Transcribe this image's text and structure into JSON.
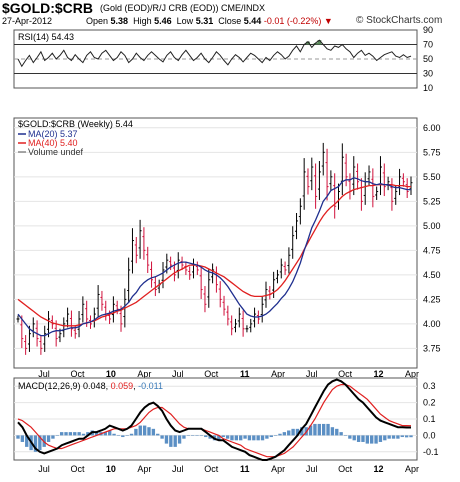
{
  "header": {
    "symbol": "$GOLD:$CRB",
    "description": "(Gold (EOD)/R/J CRB (EOD))  CME/INDX",
    "site": "© StockCharts.com",
    "date": "27-Apr-2012",
    "open_label": "Open",
    "open": "5.38",
    "high_label": "High",
    "high": "5.46",
    "low_label": "Low",
    "low": "5.31",
    "close_label": "Close",
    "close": "5.44",
    "change": "-0.01 (-0.22%)"
  },
  "rsi_panel": {
    "label": "RSI(14) 54.43",
    "ticks": [
      "90",
      "70",
      "50",
      "30",
      "10"
    ]
  },
  "price_panel": {
    "title": "$GOLD:$CRB (Weekly) 5.44",
    "legend": [
      {
        "text": "MA(20) 5.37",
        "color": "#1f2f8f"
      },
      {
        "text": "MA(40) 5.40",
        "color": "#e02020"
      },
      {
        "text": "Volume undef",
        "color": "#888888"
      }
    ],
    "ticks": [
      "6.00",
      "5.75",
      "5.50",
      "5.25",
      "5.00",
      "4.75",
      "4.50",
      "4.25",
      "4.00",
      "3.75"
    ]
  },
  "macd_panel": {
    "label_prefix": "MACD(12,26,9)",
    "v1": "0.048",
    "v2": "0.059",
    "v3": "-0.011",
    "ticks": [
      "0.3",
      "0.2",
      "0.1",
      "0.0",
      "-0.1"
    ]
  },
  "x_axis": {
    "labels": [
      "Jul",
      "Oct",
      "10",
      "Apr",
      "Jul",
      "Oct",
      "11",
      "Apr",
      "Jul",
      "Oct",
      "12",
      "Apr"
    ],
    "bold": [
      false,
      false,
      true,
      false,
      false,
      false,
      true,
      false,
      false,
      false,
      true,
      false
    ]
  },
  "colors": {
    "ma20": "#1f2f8f",
    "ma40": "#e02020",
    "bar_up": "#000000",
    "bar_down": "#d0103a",
    "macd_hist": "#5b8fc4",
    "rsi_fill": "#5a8a5a"
  },
  "chart_data": [
    {
      "type": "line",
      "title": "RSI(14) 54.43",
      "ylim": [
        10,
        90
      ],
      "y_ticks": [
        90,
        70,
        50,
        30,
        10
      ],
      "series": [
        {
          "name": "RSI(14)",
          "values": [
            50,
            40,
            48,
            55,
            45,
            52,
            60,
            48,
            52,
            58,
            50,
            55,
            62,
            52,
            48,
            56,
            50,
            45,
            55,
            60,
            52,
            50,
            58,
            62,
            55,
            48,
            52,
            60,
            55,
            45,
            50,
            58,
            52,
            48,
            55,
            60,
            55,
            50,
            46,
            55,
            60,
            52,
            48,
            56,
            62,
            55,
            48,
            52,
            58,
            50,
            45,
            52,
            60,
            55,
            48,
            42,
            50,
            56,
            52,
            46,
            52,
            58,
            55,
            50,
            45,
            52,
            48,
            55,
            60,
            56,
            50,
            54,
            62,
            68,
            60,
            70,
            74,
            66,
            72,
            76,
            70,
            64,
            62,
            68,
            66,
            70,
            64,
            60,
            52,
            58,
            62,
            55,
            58,
            54,
            48,
            52,
            56,
            58,
            60,
            54,
            52,
            56,
            52,
            54
          ]
        }
      ]
    },
    {
      "type": "line",
      "title": "$GOLD:$CRB (Weekly) 5.44",
      "ylim": [
        3.55,
        6.1
      ],
      "y_ticks": [
        6.0,
        5.75,
        5.5,
        5.25,
        5.0,
        4.75,
        4.5,
        4.25,
        4.0,
        3.75
      ],
      "series": [
        {
          "name": "$GOLD:$CRB",
          "values": [
            4.05,
            3.85,
            3.75,
            3.9,
            4.0,
            3.85,
            3.75,
            3.9,
            4.05,
            4.0,
            3.85,
            3.9,
            4.0,
            4.1,
            3.95,
            3.9,
            4.05,
            4.2,
            4.05,
            4.0,
            4.1,
            4.3,
            4.2,
            4.1,
            4.05,
            4.2,
            4.15,
            4.0,
            4.25,
            4.55,
            4.85,
            4.7,
            4.95,
            4.75,
            4.6,
            4.45,
            4.35,
            4.4,
            4.55,
            4.65,
            4.6,
            4.5,
            4.65,
            4.6,
            4.55,
            4.5,
            4.6,
            4.55,
            4.35,
            4.2,
            4.45,
            4.55,
            4.4,
            4.25,
            4.15,
            4.05,
            3.95,
            4.0,
            4.1,
            3.95,
            3.95,
            4.0,
            4.1,
            4.05,
            4.2,
            4.35,
            4.3,
            4.45,
            4.5,
            4.6,
            4.55,
            4.7,
            4.9,
            5.05,
            5.2,
            5.55,
            5.4,
            5.6,
            5.3,
            5.55,
            5.75,
            5.4,
            5.5,
            5.2,
            5.35,
            5.7,
            5.5,
            5.35,
            5.6,
            5.45,
            5.25,
            5.45,
            5.55,
            5.3,
            5.35,
            5.6,
            5.4,
            5.45,
            5.25,
            5.35,
            5.5,
            5.45,
            5.35,
            5.44
          ]
        },
        {
          "name": "MA(20) 5.37",
          "values": [
            4.1,
            4.05,
            4.0,
            3.95,
            3.92,
            3.9,
            3.88,
            3.88,
            3.9,
            3.92,
            3.93,
            3.93,
            3.94,
            3.95,
            3.96,
            3.96,
            3.97,
            4.0,
            4.01,
            4.02,
            4.04,
            4.07,
            4.09,
            4.1,
            4.11,
            4.13,
            4.14,
            4.15,
            4.18,
            4.22,
            4.28,
            4.32,
            4.38,
            4.42,
            4.45,
            4.47,
            4.48,
            4.5,
            4.52,
            4.55,
            4.58,
            4.6,
            4.62,
            4.63,
            4.63,
            4.62,
            4.61,
            4.6,
            4.58,
            4.55,
            4.53,
            4.52,
            4.5,
            4.47,
            4.43,
            4.38,
            4.32,
            4.26,
            4.2,
            4.15,
            4.1,
            4.08,
            4.07,
            4.07,
            4.08,
            4.1,
            4.13,
            4.17,
            4.21,
            4.26,
            4.3,
            4.36,
            4.43,
            4.52,
            4.62,
            4.75,
            4.86,
            4.98,
            5.06,
            5.15,
            5.25,
            5.3,
            5.36,
            5.38,
            5.4,
            5.45,
            5.47,
            5.47,
            5.49,
            5.48,
            5.46,
            5.45,
            5.45,
            5.43,
            5.42,
            5.43,
            5.42,
            5.42,
            5.4,
            5.39,
            5.39,
            5.38,
            5.37,
            5.37
          ]
        },
        {
          "name": "MA(40) 5.40",
          "values": [
            4.25,
            4.22,
            4.19,
            4.16,
            4.13,
            4.1,
            4.07,
            4.05,
            4.03,
            4.01,
            4.0,
            3.99,
            3.98,
            3.98,
            3.98,
            3.98,
            3.99,
            4.0,
            4.01,
            4.02,
            4.03,
            4.05,
            4.07,
            4.08,
            4.1,
            4.11,
            4.13,
            4.14,
            4.16,
            4.18,
            4.2,
            4.22,
            4.25,
            4.28,
            4.31,
            4.34,
            4.37,
            4.4,
            4.43,
            4.46,
            4.49,
            4.52,
            4.54,
            4.56,
            4.58,
            4.6,
            4.6,
            4.6,
            4.59,
            4.58,
            4.56,
            4.54,
            4.52,
            4.5,
            4.48,
            4.45,
            4.42,
            4.39,
            4.36,
            4.33,
            4.31,
            4.29,
            4.28,
            4.28,
            4.28,
            4.29,
            4.3,
            4.32,
            4.35,
            4.39,
            4.44,
            4.5,
            4.56,
            4.62,
            4.68,
            4.76,
            4.83,
            4.9,
            4.97,
            5.04,
            5.1,
            5.15,
            5.19,
            5.22,
            5.26,
            5.3,
            5.33,
            5.35,
            5.37,
            5.38,
            5.39,
            5.4,
            5.41,
            5.41,
            5.42,
            5.42,
            5.42,
            5.42,
            5.42,
            5.41,
            5.41,
            5.41,
            5.4,
            5.4
          ]
        }
      ]
    },
    {
      "type": "line",
      "title": "MACD(12,26,9) 0.048, 0.059, -0.011",
      "ylim": [
        -0.15,
        0.35
      ],
      "y_ticks": [
        0.3,
        0.2,
        0.1,
        0.0,
        -0.1
      ],
      "series": [
        {
          "name": "MACD",
          "values": [
            0.08,
            0.05,
            0.0,
            -0.04,
            -0.08,
            -0.1,
            -0.11,
            -0.1,
            -0.09,
            -0.08,
            -0.06,
            -0.05,
            -0.04,
            -0.03,
            -0.02,
            -0.02,
            0.0,
            0.02,
            0.02,
            0.03,
            0.04,
            0.06,
            0.05,
            0.04,
            0.03,
            0.04,
            0.06,
            0.1,
            0.14,
            0.17,
            0.19,
            0.2,
            0.18,
            0.15,
            0.1,
            0.06,
            0.03,
            0.02,
            0.03,
            0.04,
            0.04,
            0.04,
            0.04,
            0.02,
            0.0,
            -0.02,
            -0.03,
            -0.03,
            -0.05,
            -0.07,
            -0.08,
            -0.09,
            -0.1,
            -0.12,
            -0.13,
            -0.14,
            -0.15,
            -0.15,
            -0.14,
            -0.13,
            -0.11,
            -0.09,
            -0.06,
            -0.03,
            0.0,
            0.04,
            0.07,
            0.12,
            0.17,
            0.22,
            0.27,
            0.31,
            0.33,
            0.34,
            0.33,
            0.31,
            0.28,
            0.25,
            0.22,
            0.2,
            0.17,
            0.14,
            0.11,
            0.09,
            0.08,
            0.07,
            0.06,
            0.05,
            0.05,
            0.048,
            0.048
          ]
        },
        {
          "name": "Signal",
          "values": [
            0.1,
            0.09,
            0.07,
            0.05,
            0.02,
            -0.01,
            -0.04,
            -0.06,
            -0.07,
            -0.08,
            -0.08,
            -0.07,
            -0.06,
            -0.05,
            -0.04,
            -0.03,
            -0.02,
            -0.01,
            0.0,
            0.01,
            0.02,
            0.03,
            0.04,
            0.04,
            0.04,
            0.04,
            0.05,
            0.06,
            0.08,
            0.11,
            0.14,
            0.16,
            0.17,
            0.17,
            0.15,
            0.13,
            0.1,
            0.07,
            0.05,
            0.04,
            0.04,
            0.04,
            0.04,
            0.03,
            0.02,
            0.01,
            0.0,
            -0.02,
            -0.03,
            -0.04,
            -0.05,
            -0.06,
            -0.08,
            -0.09,
            -0.1,
            -0.11,
            -0.12,
            -0.13,
            -0.13,
            -0.13,
            -0.12,
            -0.11,
            -0.09,
            -0.07,
            -0.04,
            -0.01,
            0.02,
            0.06,
            0.1,
            0.15,
            0.2,
            0.24,
            0.28,
            0.3,
            0.31,
            0.31,
            0.3,
            0.28,
            0.26,
            0.24,
            0.22,
            0.19,
            0.16,
            0.13,
            0.11,
            0.09,
            0.08,
            0.07,
            0.06,
            0.06,
            0.059
          ]
        }
      ]
    }
  ]
}
